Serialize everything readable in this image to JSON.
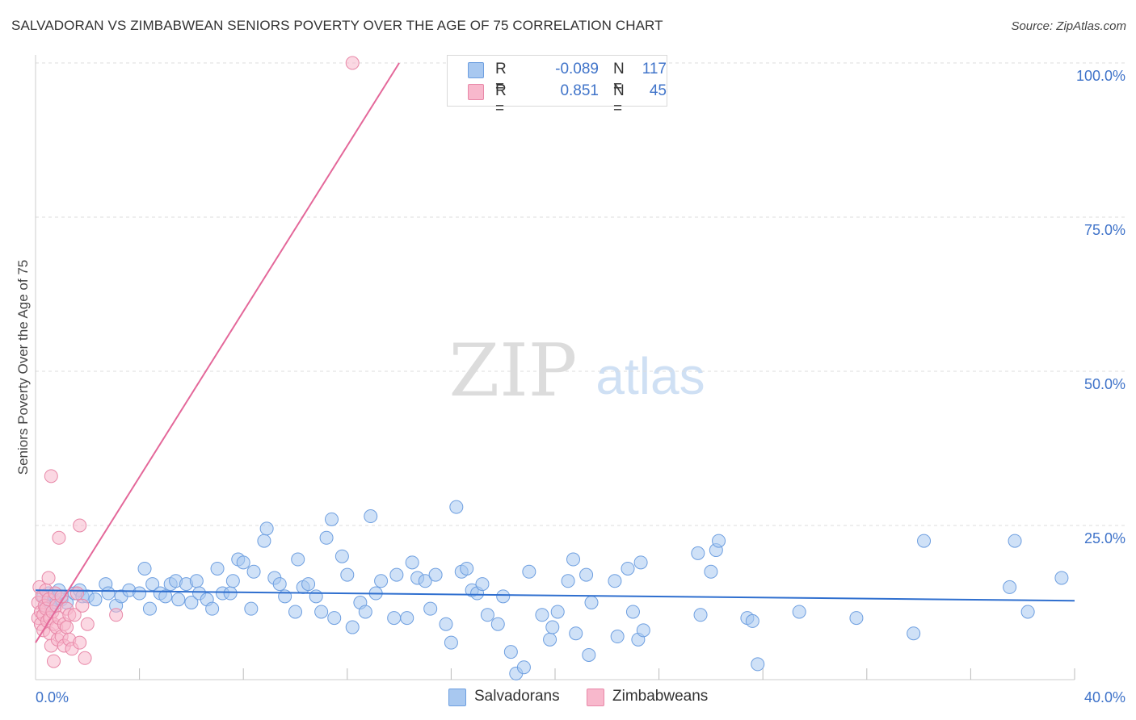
{
  "title": "SALVADORAN VS ZIMBABWEAN SENIORS POVERTY OVER THE AGE OF 75 CORRELATION CHART",
  "source": "Source: ZipAtlas.com",
  "watermark": {
    "zip": "ZIP",
    "atlas": "atlas"
  },
  "legend": [
    {
      "r_label": "R =",
      "r_value": "-0.089",
      "n_label": "N =",
      "n_value": "117",
      "fill": "#a8c8f0",
      "stroke": "#6e9fe0"
    },
    {
      "r_label": "R =",
      "r_value": "0.851",
      "n_label": "N =",
      "n_value": "45",
      "fill": "#f8b8cc",
      "stroke": "#e888a8"
    }
  ],
  "bottom_legend": [
    {
      "label": "Salvadorans",
      "fill": "#a8c8f0",
      "stroke": "#6e9fe0"
    },
    {
      "label": "Zimbabweans",
      "fill": "#f8b8cc",
      "stroke": "#e888a8"
    }
  ],
  "chart_data": {
    "type": "scatter",
    "title": "SALVADORAN VS ZIMBABWEAN SENIORS POVERTY OVER THE AGE OF 75 CORRELATION CHART",
    "xlabel": "",
    "ylabel": "Seniors Poverty Over the Age of 75",
    "xlim": [
      0,
      40
    ],
    "ylim": [
      0,
      100
    ],
    "x_tick_labels": [
      "0.0%",
      "40.0%"
    ],
    "y_tick_labels": [
      "25.0%",
      "50.0%",
      "75.0%",
      "100.0%"
    ],
    "y_ticks": [
      25,
      50,
      75,
      100
    ],
    "x_minor_ticks": [
      4,
      8,
      12,
      16,
      20,
      24,
      28,
      32,
      36,
      40
    ],
    "grid": true,
    "series": [
      {
        "name": "Salvadorans",
        "color": "#6e9fe0",
        "line_color": "#2f6fcf",
        "trend": {
          "x": [
            0,
            40
          ],
          "y": [
            14.5,
            12.8
          ]
        },
        "points": [
          [
            0.3,
            13.5
          ],
          [
            0.4,
            12.0
          ],
          [
            0.5,
            14.0
          ],
          [
            0.6,
            11.5
          ],
          [
            0.7,
            13.0
          ],
          [
            0.8,
            12.5
          ],
          [
            0.9,
            14.5
          ],
          [
            1.0,
            13.0
          ],
          [
            1.2,
            12.5
          ],
          [
            1.5,
            14.0
          ],
          [
            1.7,
            14.5
          ],
          [
            1.8,
            13.5
          ],
          [
            2.0,
            13.5
          ],
          [
            2.3,
            13.0
          ],
          [
            2.7,
            15.5
          ],
          [
            2.8,
            14.0
          ],
          [
            3.1,
            12.0
          ],
          [
            3.3,
            13.5
          ],
          [
            3.6,
            14.5
          ],
          [
            4.0,
            14.0
          ],
          [
            4.2,
            18.0
          ],
          [
            4.4,
            11.5
          ],
          [
            4.5,
            15.5
          ],
          [
            4.8,
            14.0
          ],
          [
            5.0,
            13.5
          ],
          [
            5.2,
            15.5
          ],
          [
            5.4,
            16.0
          ],
          [
            5.5,
            13.0
          ],
          [
            5.8,
            15.5
          ],
          [
            6.0,
            12.5
          ],
          [
            6.2,
            16.0
          ],
          [
            6.3,
            14.0
          ],
          [
            6.6,
            13.0
          ],
          [
            6.8,
            11.5
          ],
          [
            7.0,
            18.0
          ],
          [
            7.2,
            14.0
          ],
          [
            7.5,
            14.0
          ],
          [
            7.6,
            16.0
          ],
          [
            7.8,
            19.5
          ],
          [
            8.0,
            19.0
          ],
          [
            8.3,
            11.5
          ],
          [
            8.4,
            17.5
          ],
          [
            8.8,
            22.5
          ],
          [
            8.9,
            24.5
          ],
          [
            9.2,
            16.5
          ],
          [
            9.4,
            15.5
          ],
          [
            9.6,
            13.5
          ],
          [
            10.0,
            11.0
          ],
          [
            10.1,
            19.5
          ],
          [
            10.3,
            15.0
          ],
          [
            10.5,
            15.5
          ],
          [
            10.8,
            13.5
          ],
          [
            11.0,
            11.0
          ],
          [
            11.2,
            23.0
          ],
          [
            11.4,
            26.0
          ],
          [
            11.5,
            10.0
          ],
          [
            11.8,
            20.0
          ],
          [
            12.0,
            17.0
          ],
          [
            12.2,
            8.5
          ],
          [
            12.5,
            12.5
          ],
          [
            12.7,
            11.0
          ],
          [
            12.9,
            26.5
          ],
          [
            13.1,
            14.0
          ],
          [
            13.3,
            16.0
          ],
          [
            13.8,
            10.0
          ],
          [
            13.9,
            17.0
          ],
          [
            14.3,
            10.0
          ],
          [
            14.5,
            19.0
          ],
          [
            14.7,
            16.5
          ],
          [
            15.0,
            16.0
          ],
          [
            15.2,
            11.5
          ],
          [
            15.4,
            17.0
          ],
          [
            15.8,
            9.0
          ],
          [
            16.0,
            6.0
          ],
          [
            16.2,
            28.0
          ],
          [
            16.4,
            17.5
          ],
          [
            16.6,
            18.0
          ],
          [
            16.8,
            14.5
          ],
          [
            17.0,
            14.0
          ],
          [
            17.2,
            15.5
          ],
          [
            17.4,
            10.5
          ],
          [
            17.8,
            9.0
          ],
          [
            18.0,
            13.5
          ],
          [
            18.3,
            4.5
          ],
          [
            18.5,
            1.0
          ],
          [
            18.8,
            2.0
          ],
          [
            19.0,
            17.5
          ],
          [
            19.5,
            10.5
          ],
          [
            19.8,
            6.5
          ],
          [
            19.9,
            8.5
          ],
          [
            20.1,
            11.0
          ],
          [
            20.5,
            16.0
          ],
          [
            20.7,
            19.5
          ],
          [
            20.8,
            7.5
          ],
          [
            21.2,
            17.0
          ],
          [
            21.3,
            4.0
          ],
          [
            21.4,
            12.5
          ],
          [
            22.3,
            16.0
          ],
          [
            22.4,
            7.0
          ],
          [
            22.8,
            18.0
          ],
          [
            23.0,
            11.0
          ],
          [
            23.2,
            6.5
          ],
          [
            23.3,
            19.0
          ],
          [
            23.4,
            8.0
          ],
          [
            25.5,
            20.5
          ],
          [
            25.6,
            10.5
          ],
          [
            26.0,
            17.5
          ],
          [
            26.2,
            21.0
          ],
          [
            26.3,
            22.5
          ],
          [
            27.4,
            10.0
          ],
          [
            27.6,
            9.5
          ],
          [
            27.8,
            2.5
          ],
          [
            29.4,
            11.0
          ],
          [
            31.6,
            10.0
          ],
          [
            33.8,
            7.5
          ],
          [
            34.2,
            22.5
          ],
          [
            37.5,
            15.0
          ],
          [
            37.7,
            22.5
          ],
          [
            38.2,
            11.0
          ],
          [
            39.5,
            16.5
          ]
        ]
      },
      {
        "name": "Zimbabweans",
        "color": "#e888a8",
        "line_color": "#e4689a",
        "trend": {
          "x": [
            0,
            14.0
          ],
          "y": [
            6.0,
            100.0
          ]
        },
        "points": [
          [
            0.1,
            10.0
          ],
          [
            0.1,
            12.5
          ],
          [
            0.15,
            15.0
          ],
          [
            0.2,
            11.0
          ],
          [
            0.2,
            9.0
          ],
          [
            0.25,
            13.5
          ],
          [
            0.3,
            10.5
          ],
          [
            0.3,
            8.0
          ],
          [
            0.35,
            12.0
          ],
          [
            0.4,
            14.5
          ],
          [
            0.4,
            11.5
          ],
          [
            0.45,
            9.5
          ],
          [
            0.5,
            16.5
          ],
          [
            0.5,
            13.0
          ],
          [
            0.55,
            10.0
          ],
          [
            0.55,
            7.5
          ],
          [
            0.6,
            33.0
          ],
          [
            0.6,
            5.5
          ],
          [
            0.65,
            11.0
          ],
          [
            0.7,
            9.0
          ],
          [
            0.7,
            3.0
          ],
          [
            0.75,
            14.0
          ],
          [
            0.8,
            8.5
          ],
          [
            0.8,
            12.0
          ],
          [
            0.85,
            6.5
          ],
          [
            0.9,
            10.0
          ],
          [
            0.9,
            23.0
          ],
          [
            1.0,
            7.0
          ],
          [
            1.0,
            13.5
          ],
          [
            1.1,
            9.0
          ],
          [
            1.1,
            5.5
          ],
          [
            1.2,
            8.5
          ],
          [
            1.2,
            11.5
          ],
          [
            1.3,
            6.5
          ],
          [
            1.3,
            10.5
          ],
          [
            1.4,
            5.0
          ],
          [
            1.5,
            10.5
          ],
          [
            1.6,
            14.0
          ],
          [
            1.7,
            6.0
          ],
          [
            1.7,
            25.0
          ],
          [
            1.8,
            12.0
          ],
          [
            1.9,
            3.5
          ],
          [
            2.0,
            9.0
          ],
          [
            3.1,
            10.5
          ],
          [
            12.2,
            100.0
          ]
        ]
      }
    ]
  }
}
